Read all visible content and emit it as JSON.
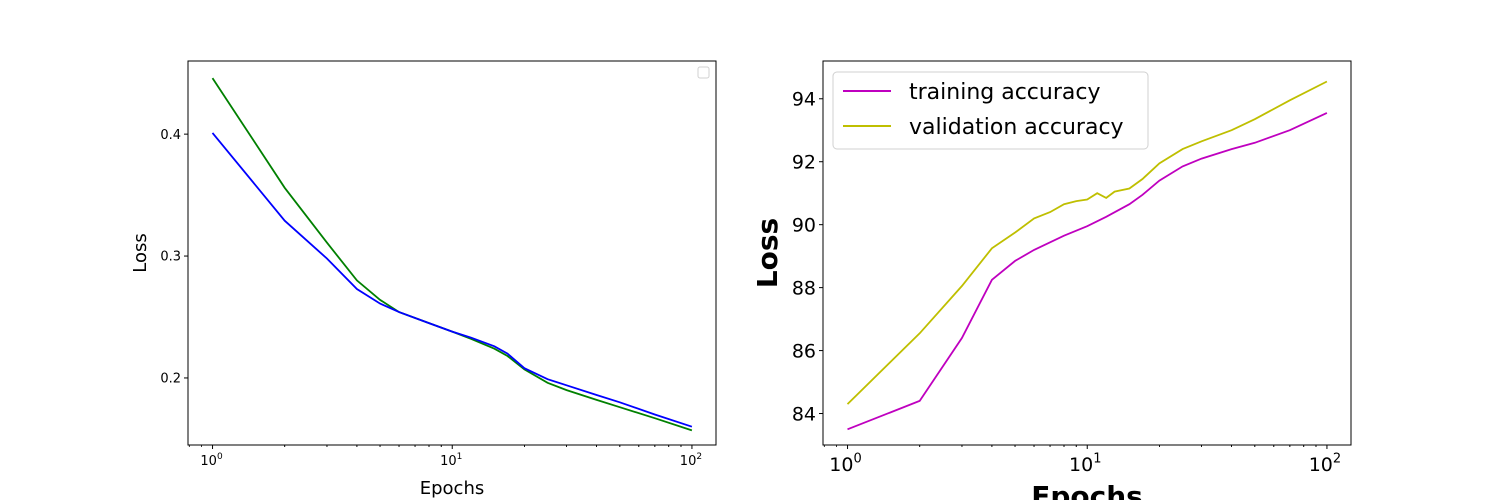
{
  "chart_data": [
    {
      "type": "line",
      "xlabel": "Epochs",
      "ylabel": "Loss",
      "xscale": "log",
      "xlim": [
        0.79,
        126
      ],
      "ylim": [
        0.145,
        0.46
      ],
      "xticks": [
        1,
        10,
        100
      ],
      "xticklabels": [
        {
          "base": "10",
          "exp": "0"
        },
        {
          "base": "10",
          "exp": "1"
        },
        {
          "base": "10",
          "exp": "2"
        }
      ],
      "yticks": [
        0.2,
        0.3,
        0.4
      ],
      "yticklabels": [
        "0.2",
        "0.3",
        "0.4"
      ],
      "legend": "top-right (empty)",
      "series": [
        {
          "color": "#008000",
          "x": [
            1,
            2,
            3,
            4,
            5,
            6,
            8,
            10,
            12,
            15,
            17,
            20,
            25,
            30,
            40,
            50,
            70,
            100
          ],
          "y": [
            0.446,
            0.356,
            0.311,
            0.28,
            0.264,
            0.254,
            0.245,
            0.238,
            0.232,
            0.224,
            0.218,
            0.207,
            0.196,
            0.19,
            0.182,
            0.176,
            0.167,
            0.157
          ]
        },
        {
          "color": "#0000ff",
          "x": [
            1,
            2,
            3,
            4,
            5,
            6,
            8,
            10,
            12,
            15,
            17,
            20,
            25,
            30,
            40,
            50,
            70,
            100
          ],
          "y": [
            0.401,
            0.329,
            0.298,
            0.273,
            0.261,
            0.254,
            0.245,
            0.238,
            0.233,
            0.226,
            0.22,
            0.208,
            0.199,
            0.194,
            0.186,
            0.18,
            0.17,
            0.16
          ]
        }
      ]
    },
    {
      "type": "line",
      "xlabel": "Epochs",
      "ylabel": "Loss",
      "xscale": "log",
      "xlim": [
        0.79,
        126
      ],
      "ylim": [
        83.0,
        95.2
      ],
      "xticks": [
        1,
        10,
        100
      ],
      "xticklabels": [
        {
          "base": "10",
          "exp": "0"
        },
        {
          "base": "10",
          "exp": "1"
        },
        {
          "base": "10",
          "exp": "2"
        }
      ],
      "yticks": [
        84,
        86,
        88,
        90,
        92,
        94
      ],
      "yticklabels": [
        "84",
        "86",
        "88",
        "90",
        "92",
        "94"
      ],
      "legend": "top-left",
      "series": [
        {
          "name": "training accuracy",
          "color": "#bf00bf",
          "x": [
            1,
            2,
            3,
            4,
            5,
            6,
            8,
            10,
            12,
            15,
            17,
            20,
            25,
            30,
            40,
            50,
            70,
            100
          ],
          "y": [
            83.5,
            84.4,
            86.4,
            88.25,
            88.85,
            89.2,
            89.65,
            89.95,
            90.25,
            90.65,
            90.95,
            91.4,
            91.85,
            92.1,
            92.4,
            92.6,
            93.0,
            93.55
          ]
        },
        {
          "name": "validation accuracy",
          "color": "#bfbf00",
          "x": [
            1,
            2,
            3,
            4,
            5,
            6,
            7,
            8,
            9,
            10,
            11,
            12,
            13,
            15,
            17,
            20,
            25,
            30,
            40,
            50,
            70,
            100
          ],
          "y": [
            84.3,
            86.55,
            88.05,
            89.25,
            89.75,
            90.2,
            90.4,
            90.65,
            90.75,
            90.8,
            91.0,
            90.85,
            91.05,
            91.15,
            91.45,
            91.95,
            92.4,
            92.65,
            93.0,
            93.35,
            93.95,
            94.55
          ]
        }
      ]
    }
  ]
}
